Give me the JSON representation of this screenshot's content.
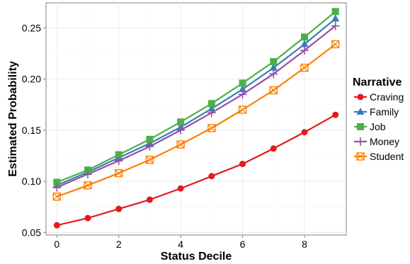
{
  "chart_data": {
    "type": "line",
    "xlabel": "Status Decile",
    "ylabel": "Estimated Probability",
    "xlim": [
      -0.35,
      9.35
    ],
    "ylim": [
      0.0475,
      0.2745
    ],
    "xticks": [
      0,
      2,
      4,
      6,
      8
    ],
    "xtick_labels": [
      "0",
      "2",
      "4",
      "6",
      "8"
    ],
    "yticks": [
      0.05,
      0.1,
      0.15,
      0.2,
      0.25
    ],
    "ytick_labels": [
      "0.05",
      "0.10",
      "0.15",
      "0.20",
      "0.25"
    ],
    "grid": true,
    "legend_title": "Narrative",
    "legend_position": "right",
    "x": [
      0,
      1,
      2,
      3,
      4,
      5,
      6,
      7,
      8,
      9
    ],
    "series": [
      {
        "name": "Craving",
        "color": "#e41a1c",
        "marker": "circle",
        "values": [
          0.057,
          0.064,
          0.073,
          0.082,
          0.093,
          0.105,
          0.117,
          0.132,
          0.148,
          0.165
        ]
      },
      {
        "name": "Family",
        "color": "#377eb8",
        "marker": "triangle",
        "values": [
          0.096,
          0.109,
          0.123,
          0.137,
          0.153,
          0.171,
          0.19,
          0.211,
          0.234,
          0.259
        ]
      },
      {
        "name": "Job",
        "color": "#4daf4a",
        "marker": "square",
        "values": [
          0.099,
          0.111,
          0.126,
          0.141,
          0.158,
          0.176,
          0.196,
          0.217,
          0.241,
          0.266
        ]
      },
      {
        "name": "Money",
        "color": "#984ea3",
        "marker": "plus",
        "values": [
          0.094,
          0.107,
          0.12,
          0.134,
          0.15,
          0.167,
          0.185,
          0.205,
          0.228,
          0.252
        ]
      },
      {
        "name": "Student",
        "color": "#ff7f00",
        "marker": "boxcross",
        "values": [
          0.085,
          0.096,
          0.108,
          0.121,
          0.136,
          0.152,
          0.17,
          0.189,
          0.211,
          0.234
        ]
      }
    ]
  }
}
